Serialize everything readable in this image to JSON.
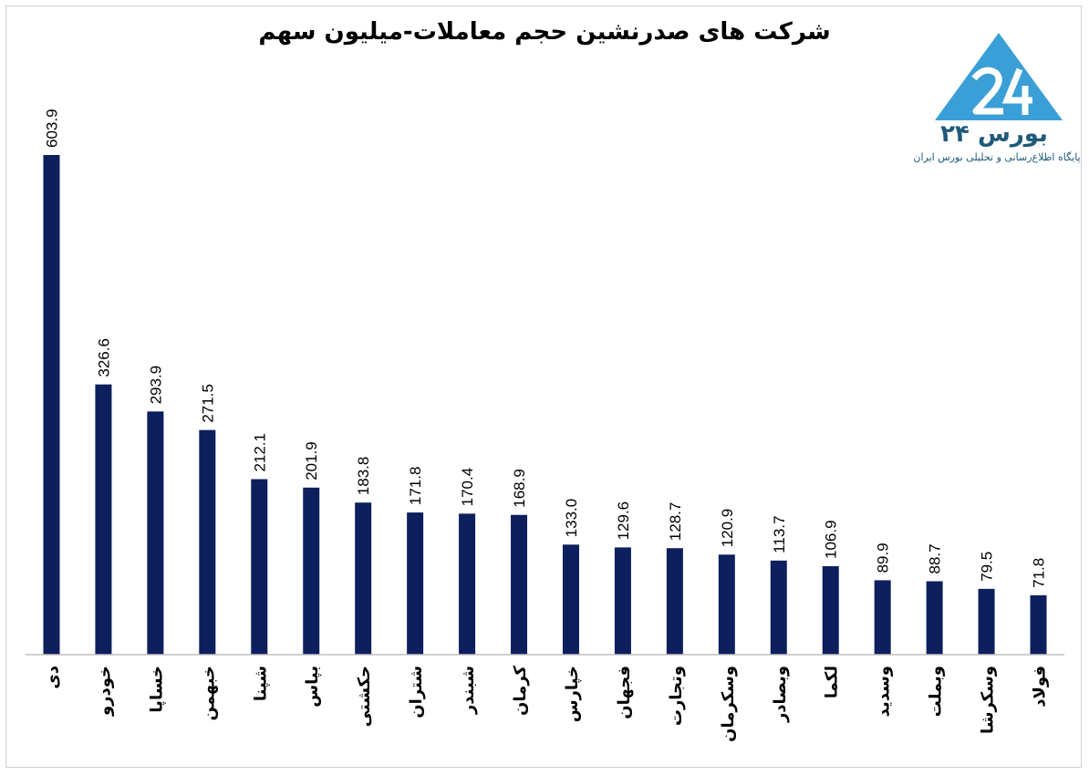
{
  "chart_data": {
    "type": "bar",
    "title": "شرکت های صدرنشین حجم معاملات-میلیون سهم",
    "categories": [
      "دی",
      "خودرو",
      "خساپا",
      "خبهمن",
      "شپنا",
      "بپاس",
      "حکشتی",
      "شتران",
      "شبندر",
      "کرمان",
      "خپارس",
      "فجهان",
      "وتجارت",
      "وسکرمان",
      "وبصادر",
      "لکما",
      "وسدید",
      "وبملت",
      "وسکرشا",
      "فولاد"
    ],
    "values": [
      603.9,
      326.6,
      293.9,
      271.5,
      212.1,
      201.9,
      183.8,
      171.8,
      170.4,
      168.9,
      133.0,
      129.6,
      128.7,
      120.9,
      113.7,
      106.9,
      89.9,
      88.7,
      79.5,
      71.8
    ],
    "value_labels": [
      "603.9",
      "326.6",
      "293.9",
      "271.5",
      "212.1",
      "201.9",
      "183.8",
      "171.8",
      "170.4",
      "168.9",
      "133.0",
      "129.6",
      "128.7",
      "120.9",
      "113.7",
      "106.9",
      "89.9",
      "88.7",
      "79.5",
      "71.8"
    ],
    "ylim": [
      0,
      603.9
    ],
    "grid": false,
    "bar_color": "#0d1f5c"
  },
  "logo": {
    "brand_text": "بورس ۲۴",
    "tagline": "پایگاه اطلاع‌رسانی و تحلیلی بورس ایران",
    "icon": "triangle-24-logo-icon",
    "color": "#3a9fd6"
  }
}
